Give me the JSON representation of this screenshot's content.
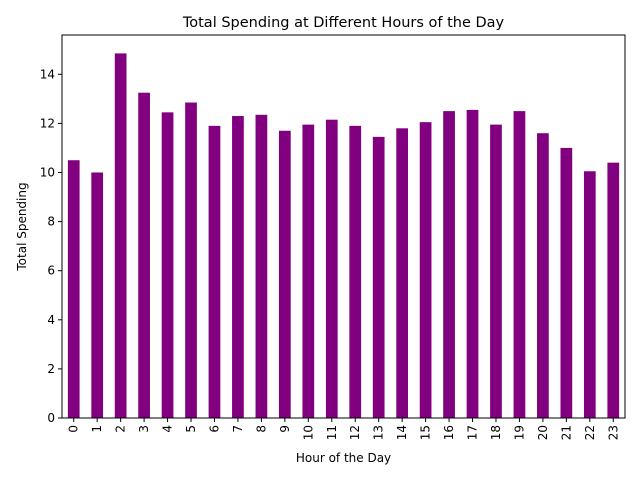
{
  "chart_data": {
    "type": "bar",
    "title": "Total Spending at Different Hours of the Day",
    "xlabel": "Hour of the Day",
    "ylabel": "Total Spending",
    "categories": [
      "0",
      "1",
      "2",
      "3",
      "4",
      "5",
      "6",
      "7",
      "8",
      "9",
      "10",
      "11",
      "12",
      "13",
      "14",
      "15",
      "16",
      "17",
      "18",
      "19",
      "20",
      "21",
      "22",
      "23"
    ],
    "values": [
      10.5,
      10.0,
      14.85,
      13.25,
      12.45,
      12.85,
      11.9,
      12.3,
      12.35,
      11.7,
      11.95,
      12.15,
      11.9,
      11.45,
      11.8,
      12.05,
      12.5,
      12.55,
      11.95,
      12.5,
      11.6,
      11.0,
      10.05,
      10.4
    ],
    "ylim": [
      0,
      15.6
    ],
    "yticks": [
      0,
      2,
      4,
      6,
      8,
      10,
      12,
      14
    ],
    "grid": false,
    "legend": null,
    "colors": {
      "bar": "#800080"
    }
  }
}
